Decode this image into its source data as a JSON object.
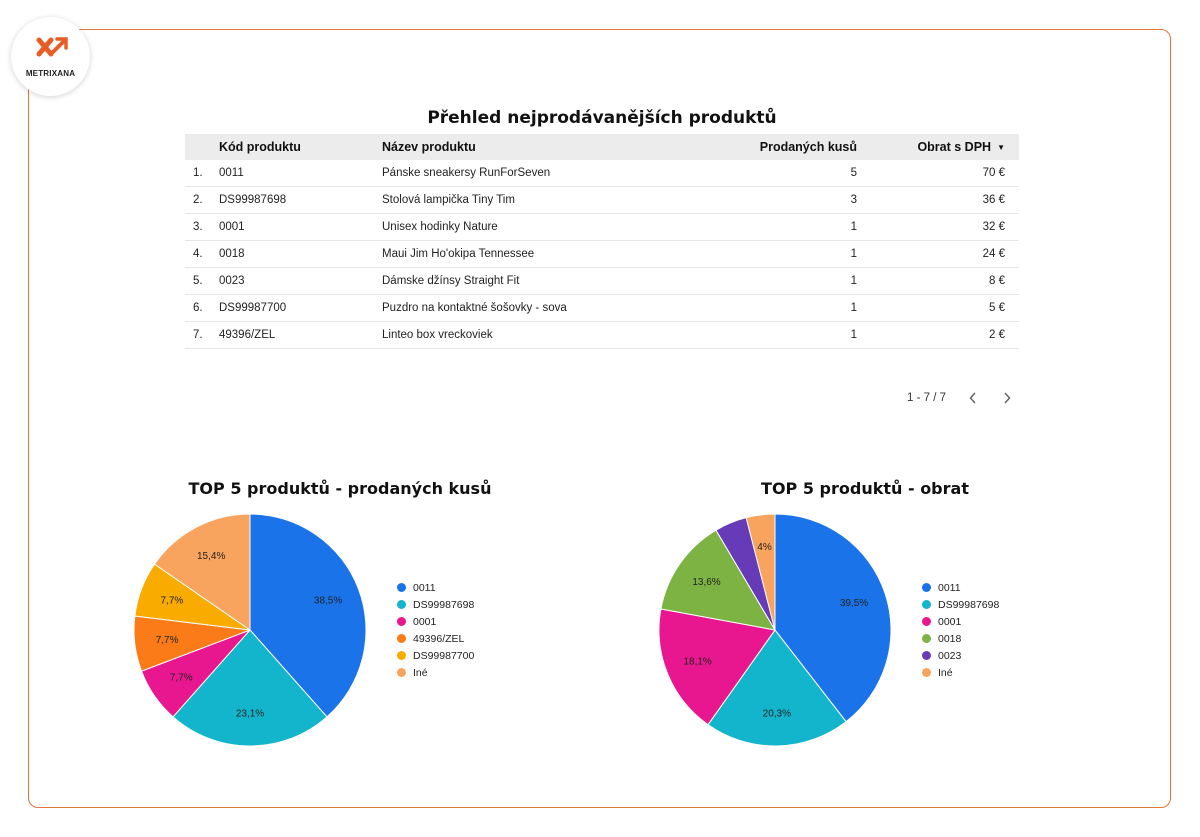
{
  "logo": {
    "text": "METRIXANA"
  },
  "table": {
    "title": "Přehled nejprodávanějších produktů",
    "headers": {
      "code": "Kód produktu",
      "name": "Název produktu",
      "qty": "Prodaných kusů",
      "revenue": "Obrat s DPH"
    },
    "rows": [
      {
        "idx": "1.",
        "code": "0011",
        "name": "Pánske sneakersy RunForSeven",
        "qty": "5",
        "revenue": "70 €"
      },
      {
        "idx": "2.",
        "code": "DS99987698",
        "name": "Stolová lampička Tiny Tim",
        "qty": "3",
        "revenue": "36 €"
      },
      {
        "idx": "3.",
        "code": "0001",
        "name": "Unisex hodinky Nature",
        "qty": "1",
        "revenue": "32 €"
      },
      {
        "idx": "4.",
        "code": "0018",
        "name": "Maui Jim Ho'okipa Tennessee",
        "qty": "1",
        "revenue": "24 €"
      },
      {
        "idx": "5.",
        "code": "0023",
        "name": "Dámske džínsy Straight Fit",
        "qty": "1",
        "revenue": "8 €"
      },
      {
        "idx": "6.",
        "code": "DS99987700",
        "name": "Puzdro na kontaktné šošovky - sova",
        "qty": "1",
        "revenue": "5 €"
      },
      {
        "idx": "7.",
        "code": "49396/ZEL",
        "name": "Linteo box vreckoviek",
        "qty": "1",
        "revenue": "2 €"
      }
    ],
    "pagination": {
      "label": "1 - 7 / 7",
      "prev_icon": "chevron-left-icon",
      "next_icon": "chevron-right-icon"
    }
  },
  "chart_data": [
    {
      "type": "pie",
      "title": "TOP 5 produktů - prodaných kusů",
      "legend_position": "right",
      "slices": [
        {
          "label": "0011",
          "value": 38.5,
          "display": "38,5%",
          "color": "#1a73e8"
        },
        {
          "label": "DS99987698",
          "value": 23.1,
          "display": "23,1%",
          "color": "#12b5cb"
        },
        {
          "label": "0001",
          "value": 7.7,
          "display": "7,7%",
          "color": "#e8168f"
        },
        {
          "label": "49396/ZEL",
          "value": 7.7,
          "display": "7,7%",
          "color": "#fa7b17"
        },
        {
          "label": "DS99987700",
          "value": 7.7,
          "display": "7,7%",
          "color": "#f9ab00"
        },
        {
          "label": "Iné",
          "value": 15.4,
          "display": "15,4%",
          "color": "#f8a45e"
        }
      ]
    },
    {
      "type": "pie",
      "title": "TOP 5 produktů - obrat",
      "legend_position": "right",
      "slices": [
        {
          "label": "0011",
          "value": 39.5,
          "display": "39,5%",
          "color": "#1a73e8"
        },
        {
          "label": "DS99987698",
          "value": 20.3,
          "display": "20,3%",
          "color": "#12b5cb"
        },
        {
          "label": "0001",
          "value": 18.1,
          "display": "18,1%",
          "color": "#e8168f"
        },
        {
          "label": "0018",
          "value": 13.6,
          "display": "13,6%",
          "color": "#7cb342"
        },
        {
          "label": "0023",
          "value": 4.5,
          "display": "",
          "color": "#673ab7"
        },
        {
          "label": "Iné",
          "value": 4.0,
          "display": "4%",
          "color": "#f8a45e"
        }
      ]
    }
  ]
}
